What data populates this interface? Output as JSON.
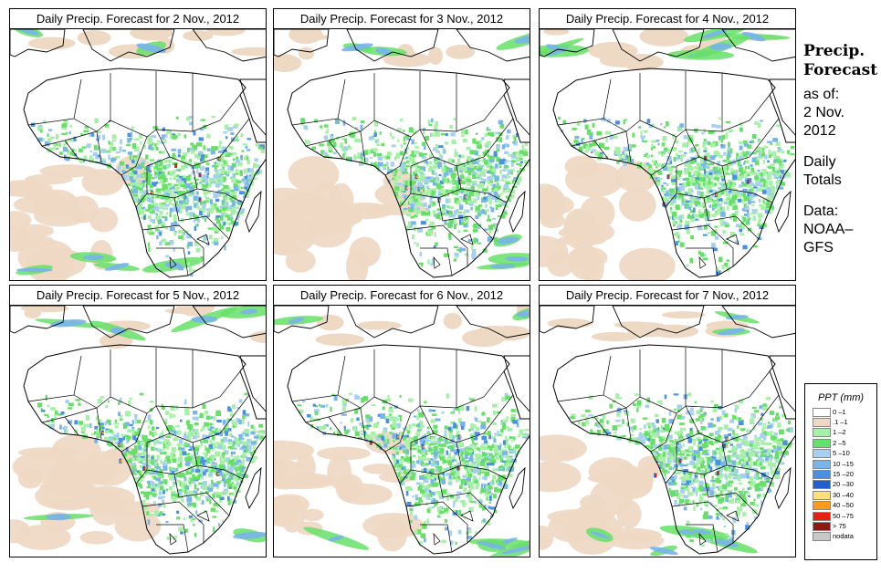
{
  "panels": [
    {
      "title": "Daily Precip. Forecast for  2 Nov., 2012"
    },
    {
      "title": "Daily Precip. Forecast for  3 Nov., 2012"
    },
    {
      "title": "Daily Precip. Forecast for  4 Nov., 2012"
    },
    {
      "title": "Daily Precip. Forecast for  5 Nov., 2012"
    },
    {
      "title": "Daily Precip. Forecast for  6 Nov., 2012"
    },
    {
      "title": "Daily Precip. Forecast for  7 Nov., 2012"
    }
  ],
  "sidebar": {
    "heading_line1": "Precip.",
    "heading_line2": "Forecast",
    "asof_line1": "as of:",
    "asof_line2": "2 Nov.",
    "asof_line3": "2012",
    "totals_line1": "Daily",
    "totals_line2": "Totals",
    "data_line1": "Data:",
    "data_line2": "NOAA–",
    "data_line3": "GFS"
  },
  "legend": {
    "title": "PPT (mm)",
    "items": [
      {
        "label": "0 –1",
        "color": "#ffffff"
      },
      {
        "label": ".1 –1",
        "color": "#eed9c4"
      },
      {
        "label": "1 –2",
        "color": "#a7f0a7"
      },
      {
        "label": "2 –5",
        "color": "#66e066"
      },
      {
        "label": "5 –10",
        "color": "#a6cff0"
      },
      {
        "label": "10 –15",
        "color": "#79b4ea"
      },
      {
        "label": "15 –20",
        "color": "#4a8fe0"
      },
      {
        "label": "20 –30",
        "color": "#1f5fd0"
      },
      {
        "label": "30 –40",
        "color": "#ffe07a"
      },
      {
        "label": "40 –50",
        "color": "#ff9a1a"
      },
      {
        "label": "50 –75",
        "color": "#e82010"
      },
      {
        "label": "> 75",
        "color": "#8b1a10"
      },
      {
        "label": "nodata",
        "color": "#c8c8c8"
      }
    ]
  }
}
